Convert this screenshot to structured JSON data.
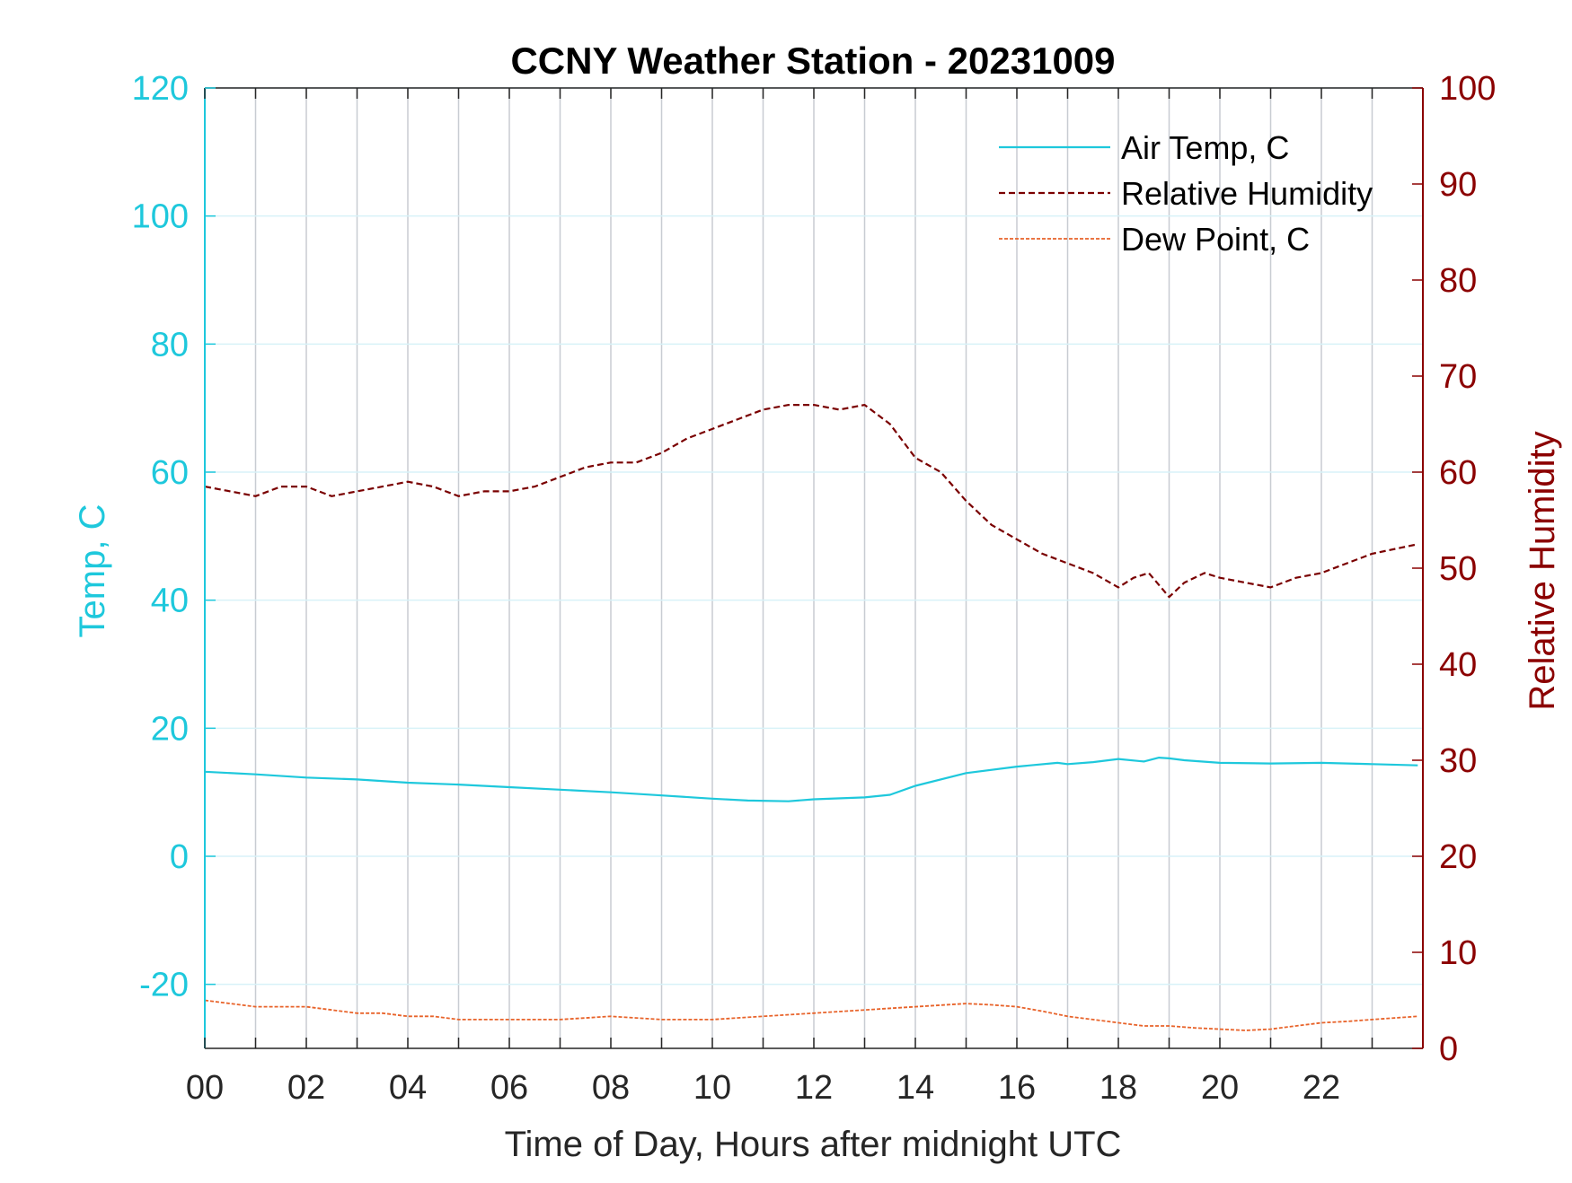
{
  "chart_data": {
    "type": "line",
    "title": "CCNY Weather Station - 20231009",
    "xlabel": "Time of Day, Hours after midnight UTC",
    "ylabel_left": "Temp, C",
    "ylabel_right": "Relative Humidity",
    "xlim": [
      0,
      24
    ],
    "ylim_left": [
      -30,
      120
    ],
    "ylim_right": [
      0,
      100
    ],
    "x_ticks": [
      0,
      2,
      4,
      6,
      8,
      10,
      12,
      14,
      16,
      18,
      20,
      22
    ],
    "x_tick_labels": [
      "00",
      "02",
      "04",
      "06",
      "08",
      "10",
      "12",
      "14",
      "16",
      "18",
      "20",
      "22"
    ],
    "y_left_ticks": [
      -20,
      0,
      20,
      40,
      60,
      80,
      100,
      120
    ],
    "y_left_tick_labels": [
      "-20",
      "0",
      "20",
      "40",
      "60",
      "80",
      "100",
      "120"
    ],
    "y_right_ticks": [
      0,
      10,
      20,
      30,
      40,
      50,
      60,
      70,
      80,
      90,
      100
    ],
    "y_right_tick_labels": [
      "0",
      "10",
      "20",
      "30",
      "40",
      "50",
      "60",
      "70",
      "80",
      "90",
      "100"
    ],
    "grid": true,
    "legend_position": "top-right",
    "colors": {
      "left_axis": "#1ec8dc",
      "right_axis": "#8b0000",
      "air_temp": "#1ec8dc",
      "humidity": "#7a0000",
      "dew_point": "#e8632a",
      "vertical_grid": "#c8ccd2",
      "horizontal_grid": "#d8f2f8"
    },
    "series": [
      {
        "name": "Air Temp, C",
        "axis": "left",
        "x": [
          0,
          1,
          2,
          3,
          4,
          5,
          6,
          7,
          8,
          9,
          10,
          10.7,
          11.5,
          12,
          13,
          13.5,
          14,
          15,
          16,
          16.8,
          17,
          17.5,
          18,
          18.5,
          18.8,
          19,
          19.3,
          20,
          21,
          22,
          23,
          23.9
        ],
        "y": [
          13.2,
          12.8,
          12.3,
          12,
          11.5,
          11.2,
          10.8,
          10.4,
          10,
          9.5,
          9,
          8.7,
          8.6,
          8.9,
          9.2,
          9.6,
          11,
          13,
          14,
          14.6,
          14.4,
          14.7,
          15.2,
          14.8,
          15.4,
          15.3,
          15,
          14.6,
          14.5,
          14.6,
          14.4,
          14.2
        ]
      },
      {
        "name": "Relative Humidity",
        "axis": "right",
        "x": [
          0,
          0.5,
          1,
          1.5,
          2,
          2.5,
          3,
          3.5,
          4,
          4.5,
          5,
          5.5,
          6,
          6.5,
          7,
          7.5,
          8,
          8.5,
          9,
          9.5,
          10,
          10.5,
          11,
          11.5,
          12,
          12.5,
          13,
          13.5,
          14,
          14.5,
          15,
          15.5,
          16,
          16.5,
          17,
          17.5,
          18,
          18.3,
          18.6,
          19,
          19.3,
          19.7,
          20,
          20.5,
          21,
          21.5,
          22,
          22.5,
          23,
          23.9
        ],
        "y": [
          58.5,
          58,
          57.5,
          58.5,
          58.5,
          57.5,
          58,
          58.5,
          59,
          58.5,
          57.5,
          58,
          58,
          58.5,
          59.5,
          60.5,
          61,
          61,
          62,
          63.5,
          64.5,
          65.5,
          66.5,
          67,
          67,
          66.5,
          67,
          65,
          61.5,
          60,
          57,
          54.5,
          53,
          51.5,
          50.5,
          49.5,
          48,
          49,
          49.5,
          47,
          48.5,
          49.5,
          49,
          48.5,
          48,
          49,
          49.5,
          50.5,
          51.5,
          52.5
        ]
      },
      {
        "name": "Dew Point, C",
        "axis": "left",
        "x": [
          0,
          0.5,
          1,
          1.5,
          2,
          2.5,
          3,
          3.5,
          4,
          4.5,
          5,
          6,
          7,
          8,
          9,
          10,
          11,
          12,
          13,
          14,
          15,
          15.5,
          16,
          16.5,
          17,
          17.5,
          18,
          18.5,
          19,
          19.5,
          20,
          20.5,
          21,
          21.5,
          22,
          22.5,
          23,
          23.9
        ],
        "y": [
          -22.5,
          -23,
          -23.5,
          -23.5,
          -23.5,
          -24,
          -24.5,
          -24.5,
          -25,
          -25,
          -25.5,
          -25.5,
          -25.5,
          -25,
          -25.5,
          -25.5,
          -25,
          -24.5,
          -24,
          -23.5,
          -23,
          -23.2,
          -23.5,
          -24.2,
          -25,
          -25.5,
          -26,
          -26.5,
          -26.5,
          -26.8,
          -27,
          -27.2,
          -27,
          -26.5,
          -26,
          -25.8,
          -25.5,
          -25
        ]
      }
    ]
  }
}
